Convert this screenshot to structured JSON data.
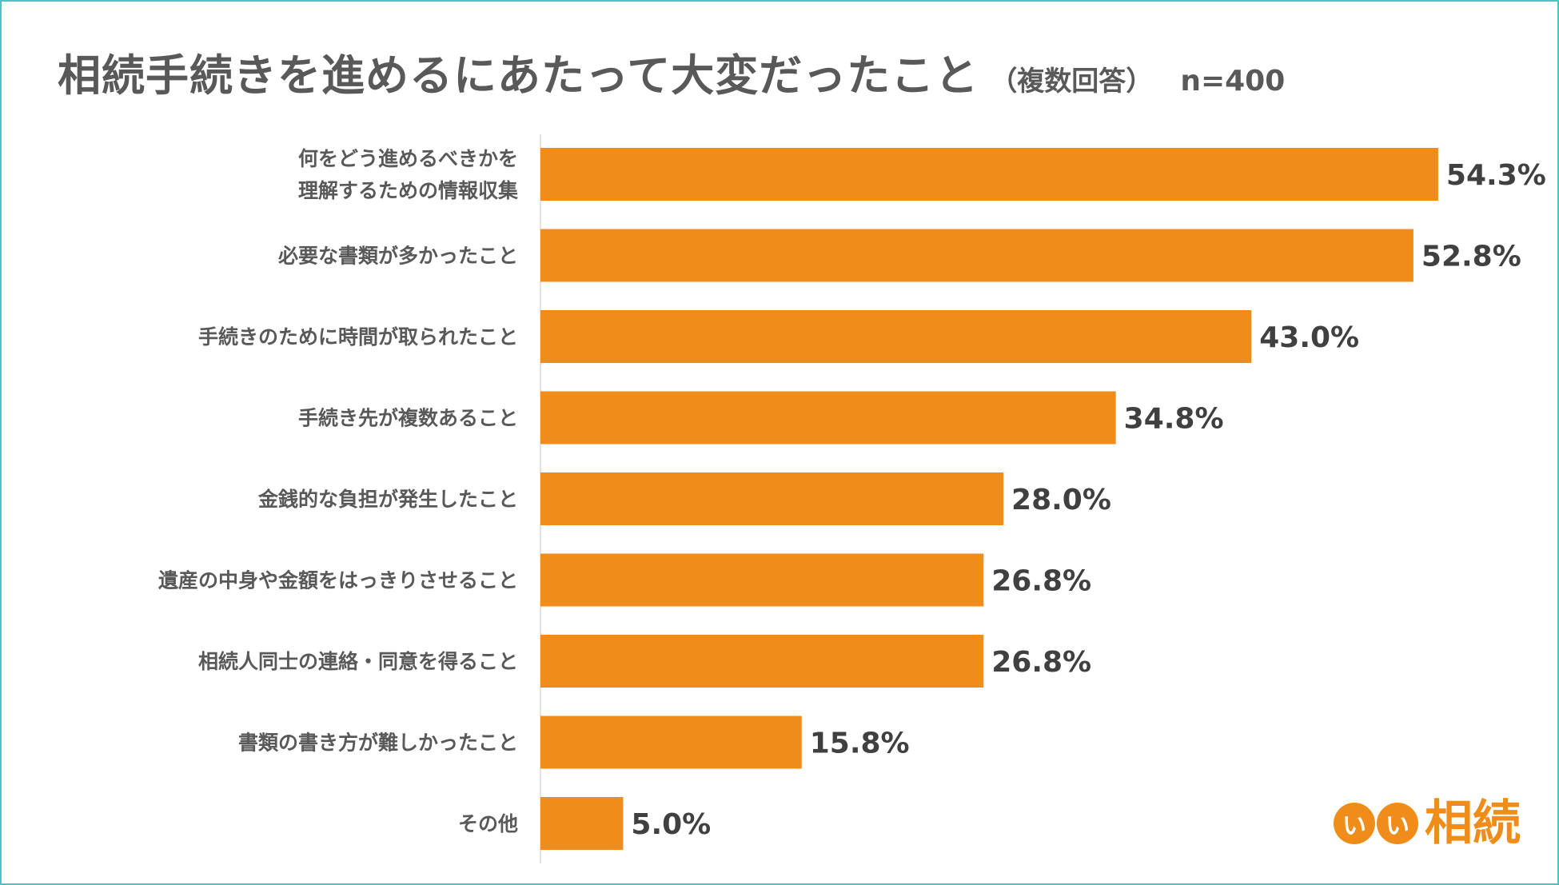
{
  "title": "相続手続きを進めるにあたって大変だったこと",
  "subtitle": "（複数回答）",
  "sample_size": "n=400",
  "colors": {
    "bar": "#f08c1a",
    "axis": "#d9d9d9",
    "frame": "#4fc3c3"
  },
  "logo": {
    "circle_1": "い",
    "circle_2": "い",
    "text": "相続"
  },
  "chart_data": {
    "type": "bar",
    "orientation": "horizontal",
    "xlim": [
      0,
      60
    ],
    "grid": false,
    "categories": [
      [
        "何をどう進めるべきかを",
        "理解するための情報収集"
      ],
      [
        "必要な書類が多かったこと"
      ],
      [
        "手続きのために時間が取られたこと"
      ],
      [
        "手続き先が複数あること"
      ],
      [
        "金銭的な負担が発生したこと"
      ],
      [
        "遺産の中身や金額をはっきりさせること"
      ],
      [
        "相続人同士の連絡・同意を得ること"
      ],
      [
        "書類の書き方が難しかったこと"
      ],
      [
        "その他"
      ]
    ],
    "values": [
      54.3,
      52.8,
      43.0,
      34.8,
      28.0,
      26.8,
      26.8,
      15.8,
      5.0
    ],
    "value_labels": [
      "54.3%",
      "52.8%",
      "43.0%",
      "34.8%",
      "28.0%",
      "26.8%",
      "26.8%",
      "15.8%",
      "5.0%"
    ]
  }
}
